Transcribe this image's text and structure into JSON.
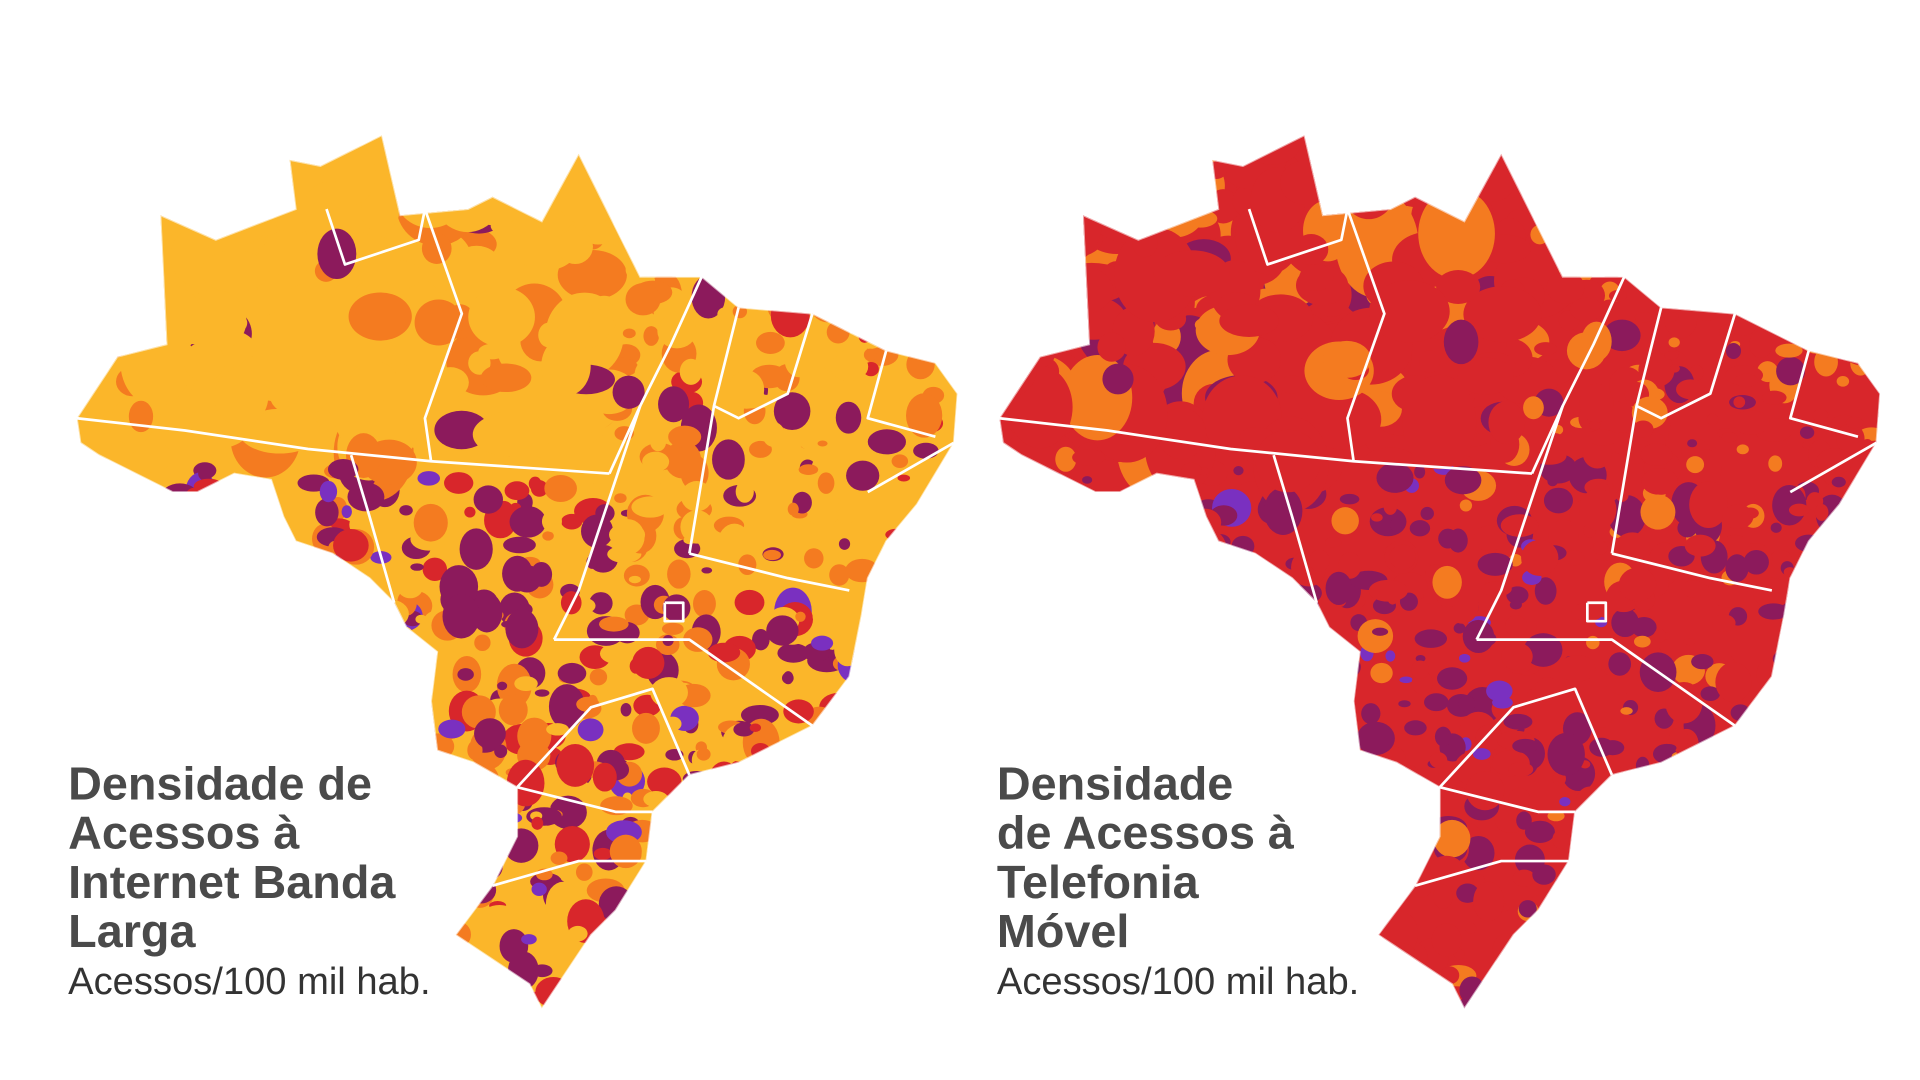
{
  "maps": [
    {
      "title_lines": [
        "Densidade de",
        "Acessos à",
        "Internet Banda",
        "Larga"
      ],
      "subtitle": "Acessos/100 mil hab."
    },
    {
      "title_lines": [
        "Densidade",
        "de Acessos à",
        "Telefonia",
        "Móvel"
      ],
      "subtitle": "Acessos/100 mil hab."
    }
  ]
}
